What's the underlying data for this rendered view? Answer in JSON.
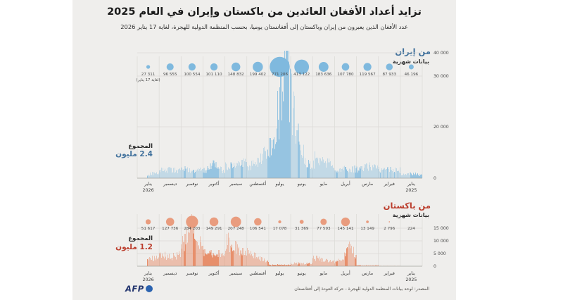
{
  "title": "تزايد أعداد الأفغان العائدين من باكستان وإيران في العام 2025",
  "subtitle": "عدد الأفغان الذين يعبرون من إيران وباكستان إلى أفغانستان يوميا، بحسب المنظمة الدولية للهجرة، لغاية 17 يناير 2026",
  "colors": {
    "panel_bg": "#efeeec",
    "iran_accent": "#41719c",
    "iran_bar": "#96c4e1",
    "iran_bubble": "#7fb9de",
    "pakistan_accent": "#bb3c2b",
    "pakistan_bar": "#e78f6b",
    "pakistan_bubble": "#e99c7e",
    "grid": "#dbdad6",
    "axis": "#a3a29e",
    "text_dark": "#1c1c1c"
  },
  "footer": {
    "logo_text": "AFP",
    "source": "المصدر: لوحة بيانات المنظمة الدولية للهجرة - حركة العودة إلى أفغانستان"
  },
  "chart_data": [
    {
      "type": "bar",
      "id": "iran",
      "title": "من إيران",
      "data_note": "بيانات شهرية",
      "total_label": "المجموع",
      "total_value": "2.4 مليون",
      "unit": "أشخاص يوميا",
      "x_direction": "time-increases-right-to-left",
      "ylim": [
        0,
        40000
      ],
      "y_ticks": [
        {
          "value": 0,
          "label": "0"
        },
        {
          "value": 20000,
          "label": "20 000"
        },
        {
          "value": 30000,
          "label": "30 000"
        },
        {
          "value": 40000,
          "label": "40 000"
        }
      ],
      "months": [
        {
          "label": "يناير",
          "year": "2026",
          "value": 27311,
          "display": "27 311",
          "note": "(لغاية 17 يناير)"
        },
        {
          "label": "ديسمبر",
          "value": 96555,
          "display": "96 555"
        },
        {
          "label": "نوفمبر",
          "value": 100554,
          "display": "100 554"
        },
        {
          "label": "أكتوبر",
          "value": 101110,
          "display": "101 110"
        },
        {
          "label": "سبتمبر",
          "value": 148832,
          "display": "148 832"
        },
        {
          "label": "أغسطس",
          "value": 199402,
          "display": "199 402"
        },
        {
          "label": "يوليو",
          "value": 771206,
          "display": "771 206"
        },
        {
          "label": "يونيو",
          "value": 413122,
          "display": "413 122"
        },
        {
          "label": "مايو",
          "value": 183636,
          "display": "183 636"
        },
        {
          "label": "أبريل",
          "value": 107780,
          "display": "107 780"
        },
        {
          "label": "مارس",
          "value": 119567,
          "display": "119 567"
        },
        {
          "label": "فبراير",
          "value": 87933,
          "display": "87 933"
        },
        {
          "label": "يناير",
          "year": "2025",
          "value": 46196,
          "display": "46 196"
        }
      ]
    },
    {
      "type": "bar",
      "id": "pakistan",
      "title": "من باكستان",
      "data_note": "بيانات شهرية",
      "total_label": "المجموع",
      "total_value": "1.2 مليون",
      "unit": "أشخاص يوميا",
      "x_direction": "time-increases-right-to-left",
      "ylim": [
        0,
        15000
      ],
      "y_ticks": [
        {
          "value": 0,
          "label": "0"
        },
        {
          "value": 5000,
          "label": "5 000"
        },
        {
          "value": 10000,
          "label": "10 000"
        },
        {
          "value": 15000,
          "label": "15 000"
        }
      ],
      "months": [
        {
          "label": "يناير",
          "year": "2026",
          "value": 51617,
          "display": "51 617"
        },
        {
          "label": "ديسمبر",
          "value": 127736,
          "display": "127 736"
        },
        {
          "label": "نوفمبر",
          "value": 284203,
          "display": "284 203"
        },
        {
          "label": "أكتوبر",
          "value": 149291,
          "display": "149 291"
        },
        {
          "label": "سبتمبر",
          "value": 207248,
          "display": "207 248"
        },
        {
          "label": "أغسطس",
          "value": 106541,
          "display": "106 541"
        },
        {
          "label": "يوليو",
          "value": 17078,
          "display": "17 078"
        },
        {
          "label": "يونيو",
          "value": 31369,
          "display": "31 369"
        },
        {
          "label": "مايو",
          "value": 77593,
          "display": "77 593"
        },
        {
          "label": "أبريل",
          "value": 145141,
          "display": "145 141"
        },
        {
          "label": "مارس",
          "value": 13149,
          "display": "13 149"
        },
        {
          "label": "فبراير",
          "value": 2796,
          "display": "2 796"
        },
        {
          "label": "يناير",
          "year": "2025",
          "value": 224,
          "display": "224"
        }
      ]
    }
  ]
}
